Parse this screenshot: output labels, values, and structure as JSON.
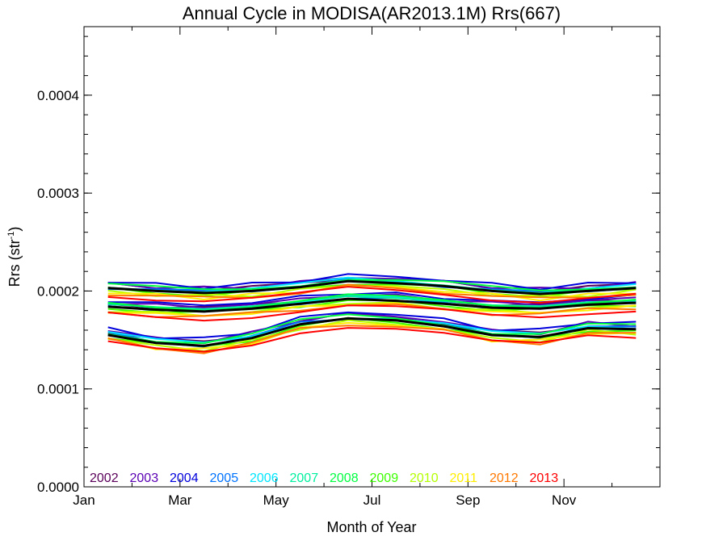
{
  "chart_data": {
    "type": "line",
    "title": "Annual Cycle in MODISA(AR2013.1M) Rrs(667)",
    "xlabel": "Month of Year",
    "ylabel_main": "Rrs (str",
    "ylabel_sup": "-1",
    "ylabel_end": ")",
    "xlim": [
      1,
      13
    ],
    "ylim": [
      0,
      0.00047
    ],
    "x_ticks": [
      {
        "value": 1,
        "label": "Jan"
      },
      {
        "value": 3,
        "label": "Mar"
      },
      {
        "value": 5,
        "label": "May"
      },
      {
        "value": 7,
        "label": "Jul"
      },
      {
        "value": 9,
        "label": "Sep"
      },
      {
        "value": 11,
        "label": "Nov"
      }
    ],
    "y_ticks": [
      {
        "value": 0,
        "label": "0.0000"
      },
      {
        "value": 0.0001,
        "label": "0.0001"
      },
      {
        "value": 0.0002,
        "label": "0.0002"
      },
      {
        "value": 0.0003,
        "label": "0.0003"
      },
      {
        "value": 0.0004,
        "label": "0.0004"
      }
    ],
    "x": [
      1.5,
      2.5,
      3.5,
      4.5,
      5.5,
      6.5,
      7.5,
      8.5,
      9.5,
      10.5,
      11.5,
      12.5
    ],
    "bands": [
      {
        "name": "upper",
        "mean": [
          0.000203,
          0.0002,
          0.000198,
          0.0002,
          0.000204,
          0.00021,
          0.000208,
          0.000205,
          0.0002,
          0.000197,
          0.0002,
          0.000203
        ]
      },
      {
        "name": "middle",
        "mean": [
          0.000184,
          0.000181,
          0.000179,
          0.000182,
          0.000187,
          0.000192,
          0.00019,
          0.000187,
          0.000183,
          0.000182,
          0.000186,
          0.000188
        ]
      },
      {
        "name": "lower",
        "mean": [
          0.000155,
          0.000147,
          0.000144,
          0.000152,
          0.000166,
          0.000172,
          0.00017,
          0.000164,
          0.000155,
          0.000153,
          0.000162,
          0.000161
        ]
      }
    ],
    "series": [
      {
        "name": "2002",
        "color": "#5a005a",
        "offset": 3.5e-06
      },
      {
        "name": "2003",
        "color": "#5a00b4",
        "offset": 4.5e-06
      },
      {
        "name": "2004",
        "color": "#0000dc",
        "offset": 6.5e-06
      },
      {
        "name": "2005",
        "color": "#0073ff",
        "offset": 1e-06
      },
      {
        "name": "2006",
        "color": "#00e6ff",
        "offset": 2e-06
      },
      {
        "name": "2007",
        "color": "#00f0a0",
        "offset": 5e-07
      },
      {
        "name": "2008",
        "color": "#00ff41",
        "offset": 3e-06
      },
      {
        "name": "2009",
        "color": "#3cff00",
        "offset": -1.5e-06
      },
      {
        "name": "2010",
        "color": "#b4ff00",
        "offset": -3.5e-06
      },
      {
        "name": "2011",
        "color": "#ffee00",
        "offset": -4.5e-06
      },
      {
        "name": "2012",
        "color": "#ff7800",
        "offset": -5.5e-06
      },
      {
        "name": "2013",
        "color": "#ff0000",
        "offset": -7.5e-06
      }
    ],
    "mean_color": "#000000",
    "legend_placement": "bottom-left",
    "grid": false
  }
}
